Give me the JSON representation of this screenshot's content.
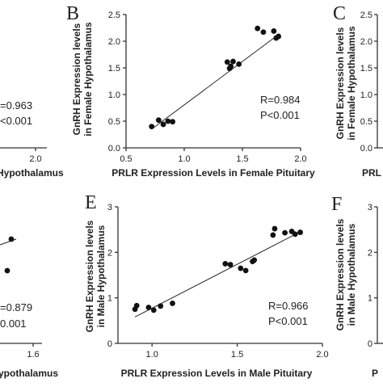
{
  "chart_data": [
    {
      "panel": "A",
      "type": "scatter",
      "title": "",
      "xlabel": "Hypothalamus",
      "ylabel": "",
      "xticks": [
        "2.0"
      ],
      "annotations": [
        "=0.963",
        "<0.001"
      ],
      "x": [],
      "y": []
    },
    {
      "panel": "B",
      "type": "scatter",
      "title": "",
      "xlabel": "PRLR Expression Levels in Female Pituitary",
      "ylabel": "GnRH Expression levels in Female Hypothalamus",
      "ylabel_lines": [
        "GnRH Expression levels",
        "in Female Hypothalamus"
      ],
      "xlim": [
        0.5,
        2.0
      ],
      "ylim": [
        0.0,
        2.5
      ],
      "xticks": [
        "0.5",
        "1.0",
        "1.5",
        "2.0"
      ],
      "yticks": [
        "0.0",
        "0.5",
        "1.0",
        "1.5",
        "2.0",
        "2.5"
      ],
      "annotations": [
        "R=0.984",
        "P<0.001"
      ],
      "x": [
        0.72,
        0.78,
        0.82,
        0.86,
        0.9,
        1.37,
        1.39,
        1.4,
        1.42,
        1.47,
        1.63,
        1.68,
        1.77,
        1.79,
        1.81
      ],
      "y": [
        0.4,
        0.52,
        0.44,
        0.5,
        0.49,
        1.61,
        1.49,
        1.53,
        1.62,
        1.57,
        2.24,
        2.17,
        2.19,
        2.06,
        2.09
      ],
      "fit": {
        "x": [
          0.72,
          1.82
        ],
        "y": [
          0.35,
          2.14
        ]
      }
    },
    {
      "panel": "C",
      "type": "scatter",
      "title": "",
      "xlabel": "PRL",
      "ylabel": "GnRH Expression levels in Female Hypothalamus",
      "ylabel_lines": [
        "GnRH Expression levels",
        "in Female Hypothalamus"
      ],
      "ylim": [
        0.0,
        2.5
      ],
      "yticks": [
        "0.0",
        "0.5",
        "1.0",
        "1.5",
        "2.0",
        "2.5"
      ],
      "x": [],
      "y": []
    },
    {
      "panel": "D",
      "type": "scatter",
      "title": "",
      "xlabel": "ypothalamus",
      "ylabel": "",
      "xticks": [
        "1.6"
      ],
      "annotations": [
        "=0.879",
        "0.001"
      ],
      "x": [],
      "y": []
    },
    {
      "panel": "E",
      "type": "scatter",
      "title": "",
      "xlabel": "PRLR Expression Levels in Male Pituitary",
      "ylabel": "GnRH Expression levels in Male Hypothalamus",
      "ylabel_lines": [
        "GnRH Expression levels",
        "in Male Hypothalamus"
      ],
      "xlim": [
        0.8,
        2.0
      ],
      "ylim": [
        0,
        3
      ],
      "xticks": [
        "1.0",
        "1.5",
        "2.0"
      ],
      "yticks": [
        "0",
        "1",
        "2",
        "3"
      ],
      "annotations": [
        "R=0.966",
        "P<0.001"
      ],
      "x": [
        0.9,
        0.91,
        0.98,
        1.01,
        1.05,
        1.12,
        1.43,
        1.46,
        1.52,
        1.55,
        1.59,
        1.6,
        1.71,
        1.72,
        1.78,
        1.82,
        1.84,
        1.87
      ],
      "y": [
        0.75,
        0.83,
        0.79,
        0.73,
        0.82,
        0.88,
        1.75,
        1.73,
        1.65,
        1.6,
        1.8,
        1.83,
        2.38,
        2.52,
        2.43,
        2.46,
        2.4,
        2.44
      ],
      "fit": {
        "x": [
          0.9,
          1.88
        ],
        "y": [
          0.58,
          2.47
        ]
      }
    },
    {
      "panel": "F",
      "type": "scatter",
      "title": "",
      "xlabel": "P",
      "ylabel": "GnRH Expression levels in Male Hypothalamus",
      "ylabel_lines": [
        "GnRH Expression levels",
        "in Male Hypothalamus"
      ],
      "ylim": [
        0,
        3
      ],
      "yticks": [
        "0",
        "1",
        "2",
        "3"
      ],
      "x": [],
      "y": []
    }
  ]
}
